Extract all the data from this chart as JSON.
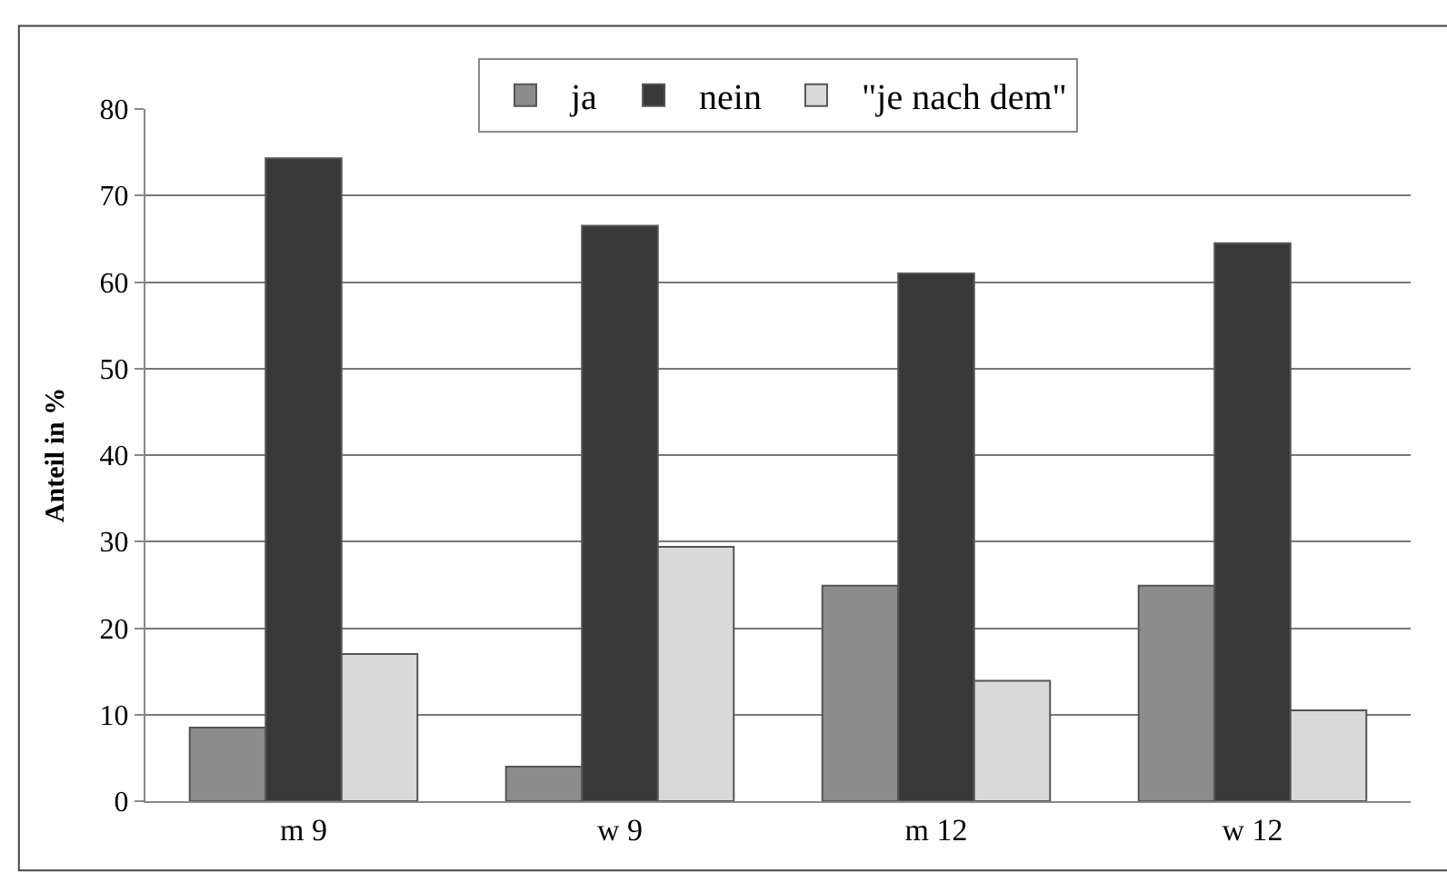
{
  "chart_data": {
    "type": "bar",
    "ylabel": "Anteil in %",
    "categories": [
      "m 9",
      "w 9",
      "m 12",
      "w 12"
    ],
    "series": [
      {
        "name": "ja",
        "color": "#8c8c8c",
        "values": [
          8.5,
          4.0,
          24.9,
          24.9
        ]
      },
      {
        "name": "nein",
        "color": "#383838",
        "values": [
          74.3,
          66.5,
          61.0,
          64.5
        ]
      },
      {
        "name": "\"je nach dem\"",
        "color": "#d9d9d9",
        "values": [
          17.0,
          29.4,
          13.9,
          10.5
        ]
      }
    ],
    "ylim": [
      0,
      80
    ],
    "yticks": [
      0,
      10,
      20,
      30,
      40,
      50,
      60,
      70,
      80
    ],
    "grid": "y",
    "legend": "top"
  }
}
